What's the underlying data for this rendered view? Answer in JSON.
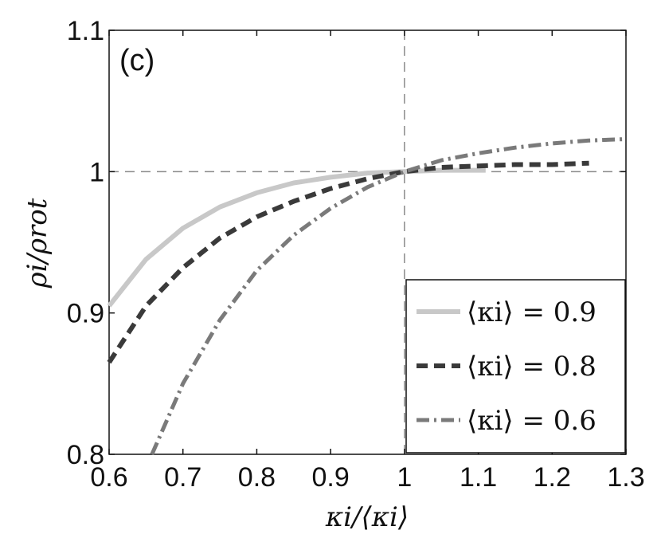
{
  "chart_data": {
    "type": "line",
    "panel_label": "(c)",
    "xlabel": "κi/⟨κi⟩",
    "ylabel": "ρi/ρrot",
    "xlim": [
      0.6,
      1.3
    ],
    "ylim": [
      0.8,
      1.1
    ],
    "xticks": [
      "0.6",
      "0.7",
      "0.8",
      "0.9",
      "1",
      "1.1",
      "1.2",
      "1.3"
    ],
    "yticks": [
      "0.8",
      "0.9",
      "1",
      "1.1"
    ],
    "reference_lines": {
      "x": 1,
      "y": 1
    },
    "legend_position": "bottom-right",
    "series": [
      {
        "name": "⟨κi⟩ = 0.9",
        "style": "solid",
        "color": "#c8c8c8",
        "x": [
          0.6,
          0.65,
          0.7,
          0.75,
          0.8,
          0.85,
          0.9,
          0.95,
          1.0,
          1.05,
          1.11
        ],
        "y": [
          0.905,
          0.938,
          0.96,
          0.975,
          0.985,
          0.992,
          0.996,
          0.999,
          1.0,
          1.001,
          1.001
        ]
      },
      {
        "name": "⟨κi⟩ = 0.8",
        "style": "dashed",
        "color": "#3a3a3a",
        "x": [
          0.6,
          0.65,
          0.7,
          0.75,
          0.8,
          0.85,
          0.9,
          0.95,
          1.0,
          1.05,
          1.1,
          1.15,
          1.2,
          1.25
        ],
        "y": [
          0.865,
          0.905,
          0.932,
          0.953,
          0.968,
          0.979,
          0.988,
          0.995,
          1.0,
          1.003,
          1.004,
          1.005,
          1.005,
          1.006
        ]
      },
      {
        "name": "⟨κi⟩ = 0.6",
        "style": "dashdot",
        "color": "#7a7a7a",
        "x": [
          0.658,
          0.7,
          0.75,
          0.8,
          0.85,
          0.9,
          0.95,
          1.0,
          1.05,
          1.1,
          1.15,
          1.2,
          1.25,
          1.3
        ],
        "y": [
          0.8,
          0.85,
          0.895,
          0.93,
          0.955,
          0.974,
          0.989,
          1.0,
          1.008,
          1.013,
          1.017,
          1.02,
          1.022,
          1.023
        ]
      }
    ]
  }
}
